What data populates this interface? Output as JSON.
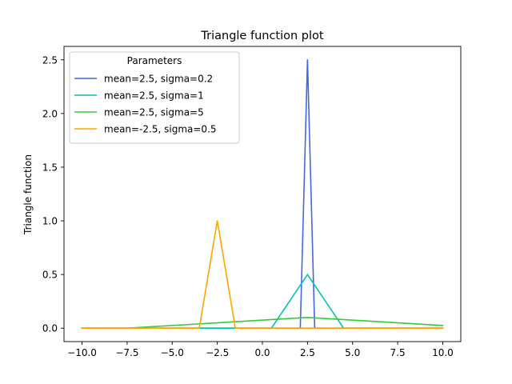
{
  "chart_data": {
    "type": "line",
    "title": "Triangle function plot",
    "xlabel": "",
    "ylabel": "Triangle function",
    "xlim": [
      -11,
      11
    ],
    "ylim": [
      -0.125,
      2.625
    ],
    "xticks": [
      -10.0,
      -7.5,
      -5.0,
      -2.5,
      0.0,
      2.5,
      5.0,
      7.5,
      10.0
    ],
    "xtick_labels": [
      "−10.0",
      "−7.5",
      "−5.0",
      "−2.5",
      "0.0",
      "2.5",
      "5.0",
      "7.5",
      "10.0"
    ],
    "yticks": [
      0.0,
      0.5,
      1.0,
      1.5,
      2.0,
      2.5
    ],
    "ytick_labels": [
      "0.0",
      "0.5",
      "1.0",
      "1.5",
      "2.0",
      "2.5"
    ],
    "grid": false,
    "legend": {
      "title": "Parameters",
      "placement": "upper-left"
    },
    "series": [
      {
        "name": "mean=2.5, sigma=0.2",
        "color": "#4169e1",
        "x": [
          -10,
          2.1,
          2.5,
          2.9,
          10
        ],
        "y": [
          0,
          0,
          2.5,
          0,
          0
        ]
      },
      {
        "name": "mean=2.5, sigma=1",
        "color": "#00c5b5",
        "x": [
          -10,
          0.5,
          2.5,
          4.5,
          10
        ],
        "y": [
          0,
          0,
          0.5,
          0,
          0
        ]
      },
      {
        "name": "mean=2.5, sigma=5",
        "color": "#32cd32",
        "x": [
          -10,
          -7.5,
          2.5,
          10
        ],
        "y": [
          0,
          0,
          0.1,
          0.025
        ]
      },
      {
        "name": "mean=-2.5, sigma=0.5",
        "color": "#ffa500",
        "x": [
          -10,
          -3.5,
          -2.5,
          -1.5,
          10
        ],
        "y": [
          0,
          0,
          1.0,
          0,
          0
        ]
      }
    ]
  }
}
